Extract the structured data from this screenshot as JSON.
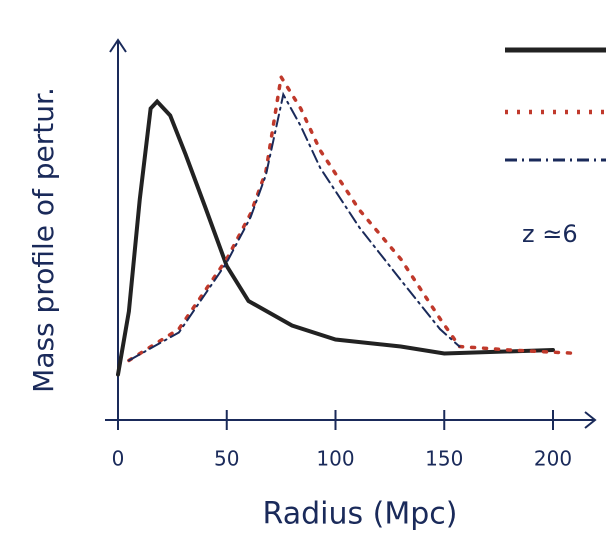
{
  "chart_data": {
    "type": "line",
    "y_label": "Mass profile of pertur.",
    "x_label": "Radius (Mpc)",
    "annotation": "z ≃6",
    "xlim": [
      0,
      215
    ],
    "xticks": [
      0,
      50,
      100,
      150,
      200
    ],
    "ylim": [
      0,
      1
    ],
    "series": [
      {
        "color": "#222222",
        "style": "solid",
        "x": [
          0,
          5,
          10,
          15,
          18,
          24,
          31,
          40,
          50,
          60,
          80,
          100,
          130,
          150,
          200
        ],
        "values": [
          0.13,
          0.31,
          0.63,
          0.89,
          0.91,
          0.87,
          0.76,
          0.61,
          0.44,
          0.34,
          0.27,
          0.23,
          0.21,
          0.19,
          0.2
        ]
      },
      {
        "color": "#c0392b",
        "style": "dotted",
        "x": [
          5,
          28,
          50,
          61,
          68,
          75,
          84,
          93,
          111,
          130,
          148,
          157,
          180,
          212
        ],
        "values": [
          0.17,
          0.26,
          0.46,
          0.59,
          0.71,
          0.98,
          0.89,
          0.77,
          0.6,
          0.46,
          0.29,
          0.21,
          0.2,
          0.19
        ]
      },
      {
        "color": "#1a2a5a",
        "style": "dashdot",
        "x": [
          5,
          28,
          50,
          61,
          68,
          76,
          84,
          93,
          111,
          130,
          148,
          157
        ],
        "values": [
          0.17,
          0.25,
          0.45,
          0.58,
          0.7,
          0.93,
          0.84,
          0.72,
          0.55,
          0.4,
          0.26,
          0.21
        ]
      }
    ]
  }
}
